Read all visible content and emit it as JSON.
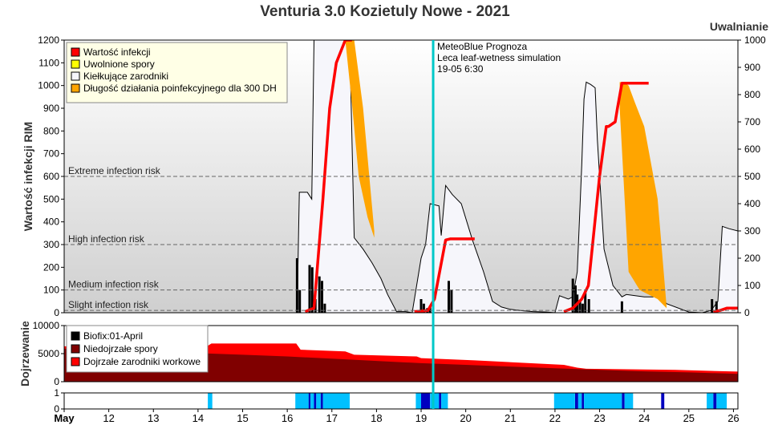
{
  "title": "Venturia 3.0 Kozietuly Nowe - 2021",
  "colors": {
    "infection": "#ff0000",
    "released": "#ffff00",
    "germinating": "#f6f6fb",
    "duration": "#ffa500",
    "biofix": "#000000",
    "immature": "#800000",
    "mature": "#ff0000",
    "wet_light": "#00c0ff",
    "wet_dark": "#0000c0",
    "forecast_line": "#00c8c8"
  },
  "forecast": {
    "label_1": "MeteoBlue Prognoza",
    "label_2": "Leca leaf-wetness simulation",
    "label_3": "19-05 6:30",
    "day": 19.27
  },
  "chart_data": [
    {
      "type": "area",
      "name": "main",
      "ylabel": "Wartość infekcji RIM",
      "y2label": "Uwalnianie",
      "xlim": [
        11,
        26.1
      ],
      "ylim": [
        0,
        1200
      ],
      "y2lim": [
        0,
        1000
      ],
      "yticks": [
        0,
        100,
        200,
        300,
        400,
        500,
        600,
        700,
        800,
        900,
        1000,
        1100,
        1200
      ],
      "y2ticks": [
        0,
        100,
        200,
        300,
        400,
        500,
        600,
        700,
        800,
        900,
        1000
      ],
      "thresholds": [
        {
          "label": "Extreme infection risk",
          "value": 600
        },
        {
          "label": "High infection risk",
          "value": 300
        },
        {
          "label": "Medium infection risk",
          "value": 100
        },
        {
          "label": "Slight infection risk",
          "value": 10
        }
      ],
      "legend": {
        "position": "top-left",
        "items": [
          "Wartość infekcji",
          "Uwolnione spory",
          "Kiełkujące zarodniki",
          "Długość działania poinfekcyjnego dla 300 DH"
        ]
      },
      "series": [
        {
          "name": "Kiełkujące zarodniki",
          "x": [
            16.22,
            16.27,
            16.45,
            16.55,
            16.6,
            16.7,
            17.0,
            17.3,
            17.4,
            17.5,
            17.7,
            17.9,
            18.1,
            18.25,
            18.45,
            18.65,
            18.8,
            19.0,
            19.1,
            19.2,
            19.4,
            19.45,
            19.55,
            19.7,
            19.9,
            20.15,
            20.4,
            20.6,
            20.8,
            21.0,
            21.3,
            21.5,
            21.8,
            22.0,
            22.1,
            22.3,
            22.4,
            22.5,
            22.6,
            22.65,
            22.7,
            22.8,
            22.9,
            22.95,
            23.1,
            23.3,
            23.5,
            23.6,
            24.0,
            24.2,
            24.35,
            24.5,
            25.0,
            25.3,
            25.5,
            25.65,
            25.75,
            25.9,
            26.1
          ],
          "y": [
            0,
            530,
            530,
            500,
            1200,
            1200,
            1200,
            1200,
            1200,
            330,
            280,
            220,
            150,
            80,
            5,
            5,
            0,
            240,
            300,
            480,
            470,
            340,
            560,
            520,
            480,
            320,
            180,
            50,
            25,
            15,
            8,
            5,
            3,
            0,
            75,
            60,
            70,
            180,
            650,
            940,
            1015,
            1005,
            990,
            760,
            280,
            120,
            70,
            80,
            70,
            70,
            80,
            40,
            3,
            0,
            10,
            50,
            380,
            370,
            360
          ]
        },
        {
          "name": "Długość działania poinfekcyjnego dla 300 DH",
          "x": [
            17.3,
            17.35,
            17.5,
            17.7,
            17.95,
            17.95,
            17.8,
            17.6,
            17.45,
            17.3,
            23.45,
            23.55,
            23.65,
            23.8,
            24.0,
            24.3,
            24.5,
            24.5,
            24.3,
            23.9,
            23.65,
            23.45
          ],
          "y": [
            1200,
            1200,
            1200,
            900,
            360,
            330,
            420,
            600,
            920,
            1200,
            1015,
            1015,
            1000,
            920,
            820,
            500,
            30,
            20,
            60,
            100,
            180,
            900
          ]
        },
        {
          "name": "Wartość infekcji",
          "x": [
            16.4,
            16.6,
            16.8,
            16.95,
            17.1,
            17.3,
            17.45,
            18.85,
            19.15,
            19.3,
            19.55,
            19.65,
            19.8,
            20.2,
            22.2,
            22.4,
            22.6,
            22.75,
            23.0,
            23.15,
            23.2,
            23.35,
            23.4,
            23.5,
            23.6,
            24.1,
            25.55,
            25.7,
            25.85,
            26.1
          ],
          "y": [
            5,
            20,
            500,
            900,
            1100,
            1200,
            1200,
            5,
            10,
            60,
            320,
            325,
            325,
            325,
            5,
            20,
            60,
            120,
            600,
            820,
            820,
            840,
            900,
            1010,
            1010,
            1010,
            5,
            10,
            20,
            20
          ]
        }
      ]
    },
    {
      "type": "area",
      "name": "maturation",
      "ylabel": "Dojrzewanie",
      "ylim": [
        0,
        10000
      ],
      "yticks": [
        0,
        5000,
        10000
      ],
      "legend": {
        "position": "top-left",
        "items": [
          "Biofix:01-April",
          "Niedojrzałe spory",
          "Dojrzałe zarodniki workowe"
        ]
      },
      "series": [
        {
          "name": "Dojrzałe zarodniki workowe",
          "x": [
            11,
            11.7,
            13.0,
            14.2,
            14.3,
            16.2,
            16.3,
            17.3,
            17.5,
            18.9,
            19.0,
            20.2,
            22.2,
            22.5,
            22.7,
            24.7,
            26.1
          ],
          "y": [
            6300,
            6300,
            6300,
            6300,
            6800,
            6800,
            5700,
            5400,
            4800,
            4500,
            4200,
            3800,
            3000,
            2500,
            2300,
            2100,
            1800
          ]
        },
        {
          "name": "Niedojrzałe spory",
          "x": [
            11,
            12,
            13,
            14,
            15,
            16,
            17,
            18,
            19,
            20,
            21,
            22,
            23,
            24,
            25,
            26.1
          ],
          "y": [
            5900,
            5700,
            5400,
            5100,
            4800,
            4500,
            4100,
            3700,
            3300,
            3000,
            2700,
            2400,
            2100,
            1850,
            1650,
            1400
          ]
        }
      ]
    },
    {
      "type": "bar",
      "name": "leaf-wetness",
      "ylim": [
        0,
        1
      ],
      "yticks": [
        0,
        1
      ],
      "xticks": [
        "May",
        "12",
        "13",
        "14",
        "15",
        "16",
        "17",
        "18",
        "19",
        "20",
        "21",
        "22",
        "23",
        "24",
        "25",
        "26"
      ],
      "wet_periods": [
        {
          "start": 14.22,
          "end": 14.32,
          "level": "light"
        },
        {
          "start": 16.18,
          "end": 16.48,
          "level": "light"
        },
        {
          "start": 16.48,
          "end": 16.52,
          "level": "dark"
        },
        {
          "start": 16.52,
          "end": 16.6,
          "level": "light"
        },
        {
          "start": 16.6,
          "end": 16.65,
          "level": "dark"
        },
        {
          "start": 16.65,
          "end": 16.75,
          "level": "light"
        },
        {
          "start": 16.75,
          "end": 16.8,
          "level": "dark"
        },
        {
          "start": 16.8,
          "end": 17.4,
          "level": "light"
        },
        {
          "start": 18.88,
          "end": 19.0,
          "level": "light"
        },
        {
          "start": 19.0,
          "end": 19.2,
          "level": "dark"
        },
        {
          "start": 19.2,
          "end": 19.4,
          "level": "light"
        },
        {
          "start": 19.4,
          "end": 19.45,
          "level": "dark"
        },
        {
          "start": 19.45,
          "end": 19.6,
          "level": "light"
        },
        {
          "start": 21.98,
          "end": 22.45,
          "level": "light"
        },
        {
          "start": 22.45,
          "end": 22.52,
          "level": "dark"
        },
        {
          "start": 22.52,
          "end": 22.6,
          "level": "light"
        },
        {
          "start": 22.6,
          "end": 22.65,
          "level": "dark"
        },
        {
          "start": 22.65,
          "end": 23.5,
          "level": "light"
        },
        {
          "start": 23.5,
          "end": 23.56,
          "level": "dark"
        },
        {
          "start": 23.56,
          "end": 23.75,
          "level": "light"
        },
        {
          "start": 24.38,
          "end": 24.45,
          "level": "dark"
        },
        {
          "start": 25.4,
          "end": 25.55,
          "level": "light"
        },
        {
          "start": 25.55,
          "end": 25.62,
          "level": "dark"
        },
        {
          "start": 25.62,
          "end": 25.85,
          "level": "light"
        }
      ]
    }
  ],
  "spore_bars": {
    "x": [
      16.22,
      16.28,
      16.5,
      16.56,
      16.63,
      16.72,
      16.78,
      16.84,
      19.0,
      19.06,
      19.14,
      19.2,
      19.62,
      19.68,
      22.4,
      22.46,
      22.5,
      22.56,
      22.62,
      22.68,
      22.76,
      23.5,
      25.52,
      25.62
    ],
    "y": [
      240,
      100,
      210,
      200,
      60,
      160,
      140,
      40,
      60,
      40,
      20,
      30,
      140,
      100,
      150,
      120,
      80,
      50,
      40,
      90,
      60,
      50,
      60,
      50
    ]
  }
}
